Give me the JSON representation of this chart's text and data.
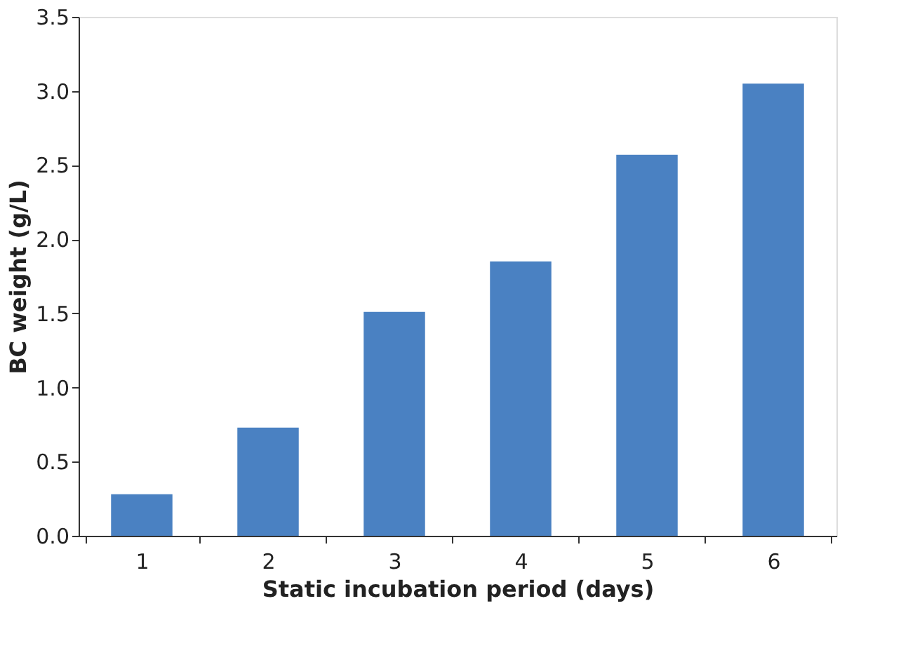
{
  "chart_data": {
    "type": "bar",
    "xlabel": "Static incubation period (days)",
    "ylabel": "BC weight (g/L)",
    "categories": [
      "1",
      "2",
      "3",
      "4",
      "5",
      "6"
    ],
    "values": [
      0.28,
      0.73,
      1.51,
      1.85,
      2.57,
      3.05
    ],
    "color": "#4a81c2",
    "ylim": [
      0,
      3.5
    ],
    "yticks": [
      {
        "value": 0,
        "label": "0.0"
      },
      {
        "value": 0.5,
        "label": "0.5"
      },
      {
        "value": 1,
        "label": "1.0"
      },
      {
        "value": 1.5,
        "label": "1.5"
      },
      {
        "value": 2,
        "label": "2.0"
      },
      {
        "value": 2.5,
        "label": "2.5"
      },
      {
        "value": 3,
        "label": "3.0"
      },
      {
        "value": 3.5,
        "label": "3.5"
      }
    ],
    "grid": false
  }
}
